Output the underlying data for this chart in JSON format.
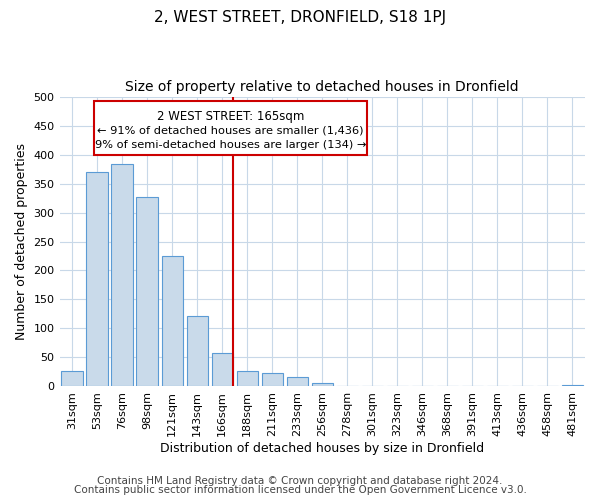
{
  "title": "2, WEST STREET, DRONFIELD, S18 1PJ",
  "subtitle": "Size of property relative to detached houses in Dronfield",
  "xlabel": "Distribution of detached houses by size in Dronfield",
  "ylabel": "Number of detached properties",
  "bar_labels": [
    "31sqm",
    "53sqm",
    "76sqm",
    "98sqm",
    "121sqm",
    "143sqm",
    "166sqm",
    "188sqm",
    "211sqm",
    "233sqm",
    "256sqm",
    "278sqm",
    "301sqm",
    "323sqm",
    "346sqm",
    "368sqm",
    "391sqm",
    "413sqm",
    "436sqm",
    "458sqm",
    "481sqm"
  ],
  "bar_values": [
    27,
    370,
    383,
    327,
    225,
    122,
    58,
    27,
    23,
    17,
    6,
    0,
    0,
    0,
    0,
    0,
    0,
    0,
    0,
    0,
    3
  ],
  "bar_color": "#c9daea",
  "bar_edge_color": "#5b9bd5",
  "highlight_index": 6,
  "highlight_line_color": "#cc0000",
  "annotation_title": "2 WEST STREET: 165sqm",
  "annotation_line1": "← 91% of detached houses are smaller (1,436)",
  "annotation_line2": "9% of semi-detached houses are larger (134) →",
  "annotation_box_color": "#cc0000",
  "ylim": [
    0,
    500
  ],
  "yticks": [
    0,
    50,
    100,
    150,
    200,
    250,
    300,
    350,
    400,
    450,
    500
  ],
  "footer_line1": "Contains HM Land Registry data © Crown copyright and database right 2024.",
  "footer_line2": "Contains public sector information licensed under the Open Government Licence v3.0.",
  "bg_color": "#ffffff",
  "grid_color": "#c8d8e8",
  "title_fontsize": 11,
  "subtitle_fontsize": 10,
  "axis_label_fontsize": 9,
  "tick_fontsize": 8,
  "footer_fontsize": 7.5
}
